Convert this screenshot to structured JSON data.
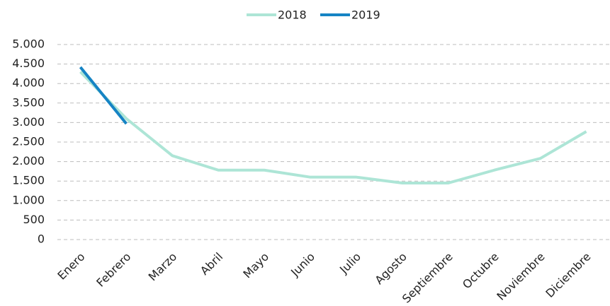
{
  "chart_data": {
    "type": "line",
    "categories": [
      "Enero",
      "Febrero",
      "Marzo",
      "Abril",
      "Mayo",
      "Junio",
      "Julio",
      "Agosto",
      "Septiembre",
      "Octubre",
      "Noviembre",
      "Diciembre"
    ],
    "series": [
      {
        "name": "2018",
        "color": "#ade5d6",
        "values": [
          4300,
          3100,
          2150,
          1780,
          1780,
          1600,
          1600,
          1450,
          1450,
          1780,
          2080,
          2770
        ]
      },
      {
        "name": "2019",
        "color": "#1684c4",
        "values": [
          4420,
          2970,
          null,
          null,
          null,
          null,
          null,
          null,
          null,
          null,
          null,
          null
        ]
      }
    ],
    "ylim": [
      0,
      5000
    ],
    "yticks": [
      0,
      500,
      {
        "value": 1000,
        "label": "1.000"
      },
      {
        "value": 1500,
        "label": "1.500"
      },
      {
        "value": 2000,
        "label": "2.000"
      },
      {
        "value": 2500,
        "label": "2.500"
      },
      {
        "value": 3000,
        "label": "3.000"
      },
      {
        "value": 3500,
        "label": "3.500"
      },
      {
        "value": 4000,
        "label": "4.000"
      },
      {
        "value": 4500,
        "label": "4.500"
      },
      {
        "value": 5000,
        "label": "5.000"
      }
    ],
    "grid": true,
    "legend": "top"
  }
}
